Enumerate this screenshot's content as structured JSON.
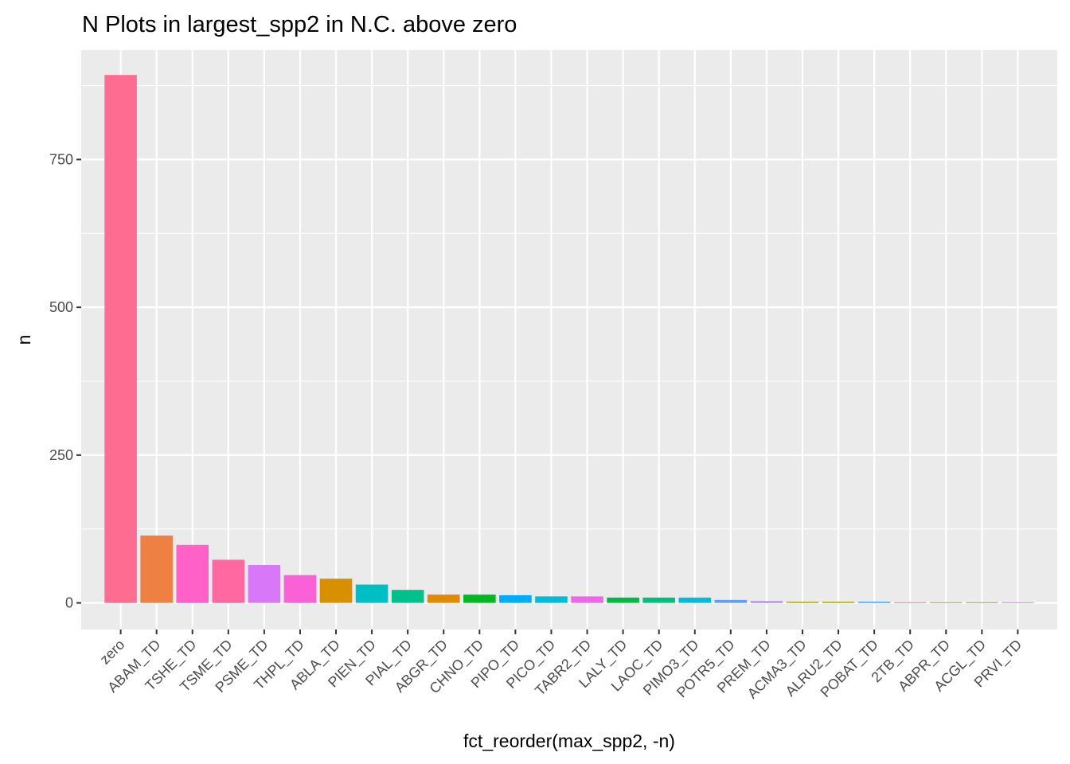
{
  "chart_data": {
    "type": "bar",
    "title": "N Plots in largest_spp2 in N.C. above zero",
    "xlabel": "fct_reorder(max_spp2, -n)",
    "ylabel": "n",
    "ylim": [
      -45,
      935
    ],
    "yticks": [
      0,
      250,
      500,
      750
    ],
    "yticklabels": [
      "0",
      "250",
      "500",
      "750"
    ],
    "grid": true,
    "legend": "none",
    "categories": [
      "zero",
      "ABAM_TD",
      "TSHE_TD",
      "TSME_TD",
      "PSME_TD",
      "THPL_TD",
      "ABLA_TD",
      "PIEN_TD",
      "PIAL_TD",
      "ABGR_TD",
      "CHNO_TD",
      "PIPO_TD",
      "PICO_TD",
      "TABR2_TD",
      "LALY_TD",
      "LAOC_TD",
      "PIMO3_TD",
      "POTR5_TD",
      "PREM_TD",
      "ACMA3_TD",
      "ALRU2_TD",
      "POBAT_TD",
      "2TB_TD",
      "ABPR_TD",
      "ACGL_TD",
      "PRVI_TD"
    ],
    "values": [
      893,
      114,
      98,
      73,
      64,
      47,
      41,
      31,
      22,
      14,
      14,
      13,
      11,
      11,
      9,
      9,
      9,
      5,
      3,
      2,
      2,
      2,
      1,
      1,
      1,
      1
    ],
    "colors": [
      "#FF6C91",
      "#EE8043",
      "#FF61C9",
      "#FF68A1",
      "#D877F8",
      "#FB61D7",
      "#D89000",
      "#00BFC4",
      "#00C08B",
      "#E18A00",
      "#00B81F",
      "#00ADFA",
      "#00BCD8",
      "#F066EA",
      "#00BA42",
      "#00BF7D",
      "#00BBDA",
      "#619CFF",
      "#AE87FF",
      "#A3A500",
      "#9FA800",
      "#35A2FF",
      "#FF6A98",
      "#BE9C00",
      "#A3A500",
      "#E76BF3"
    ],
    "background": "#EBEBEB",
    "grid_color": "#FFFFFF"
  }
}
